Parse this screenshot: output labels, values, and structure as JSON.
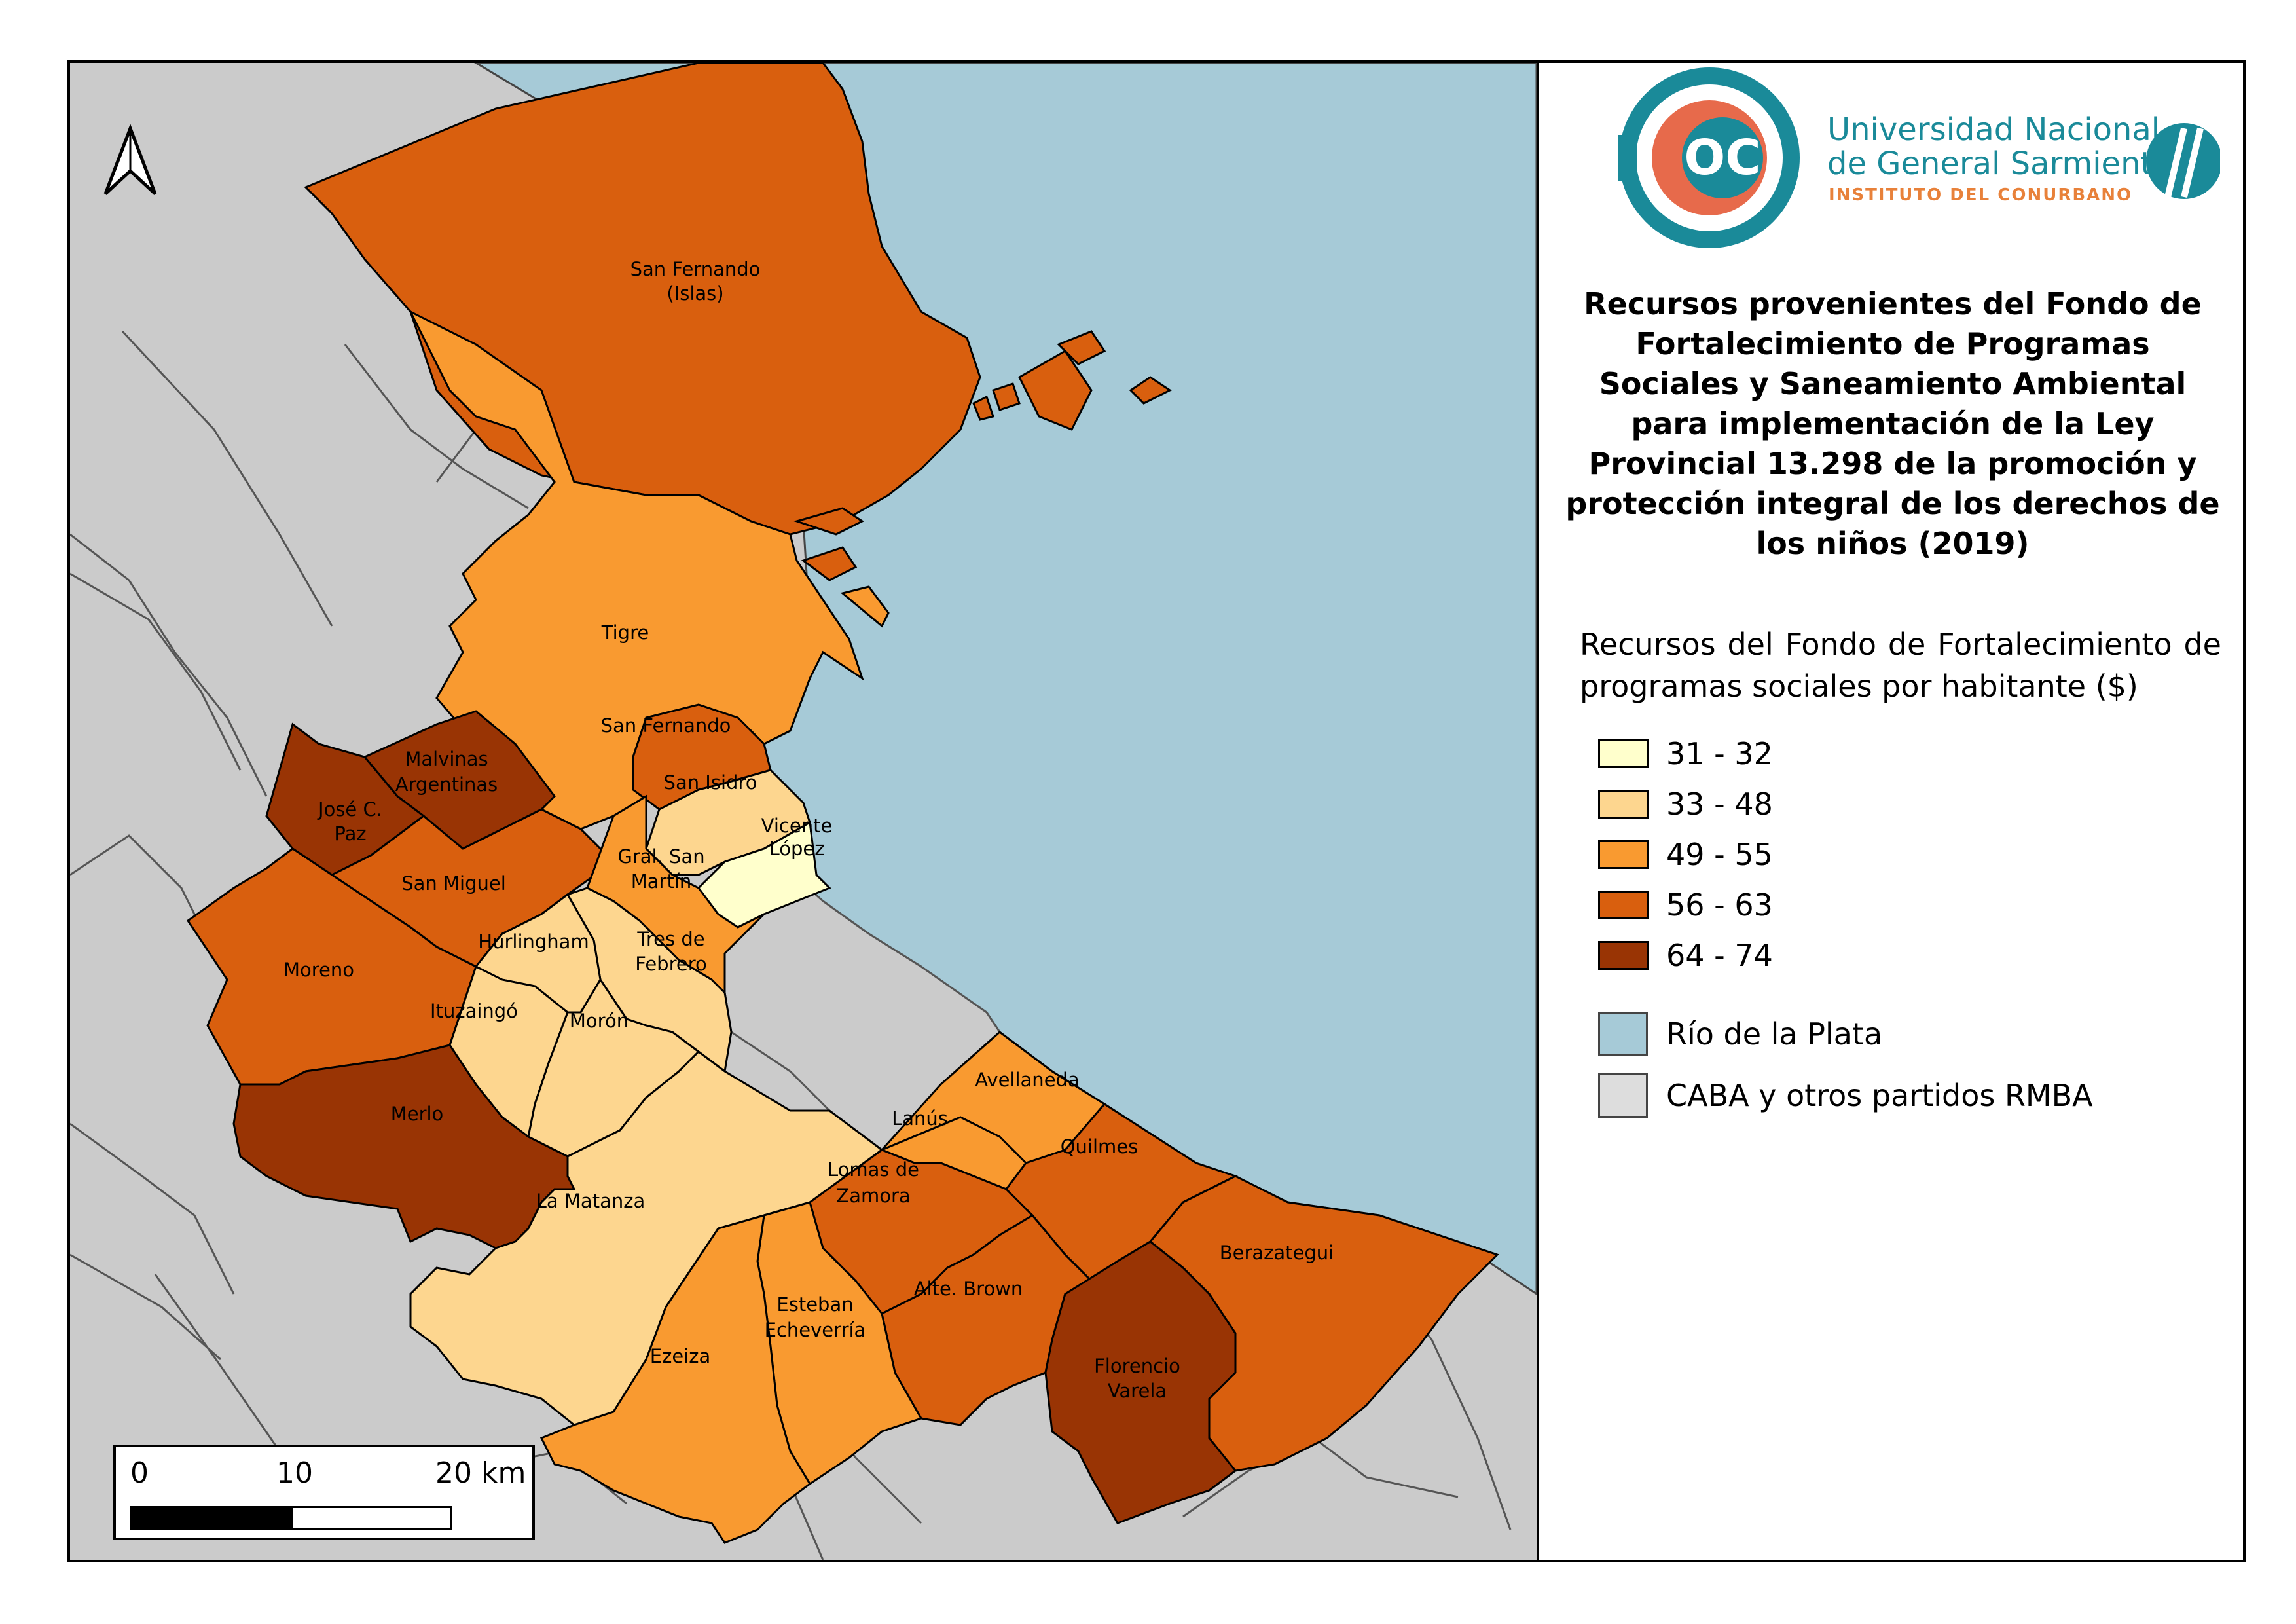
{
  "title": "Recursos provenientes del Fondo de Fortalecimiento de Programas Sociales y Saneamiento Ambiental para implementación de la Ley Provincial 13.298 de la promoción y protección integral de los derechos de los niños (2019)",
  "logo": {
    "monogram": "OC",
    "name_line1": "Universidad Nacional",
    "name_line2": "de General Sarmiento",
    "institute": "INSTITUTO DEL CONURBANO"
  },
  "legend": {
    "title": "Recursos del Fondo de Fortalecimiento de programas sociales por habitante ($)",
    "classes": [
      {
        "range": "31 - 32",
        "color": "#ffffcc"
      },
      {
        "range": "33 - 48",
        "color": "#fdd68f"
      },
      {
        "range": "49 - 55",
        "color": "#f99a30"
      },
      {
        "range": "56 - 63",
        "color": "#d95f0e"
      },
      {
        "range": "64 - 74",
        "color": "#993404"
      }
    ],
    "other": [
      {
        "label": "Río de la Plata",
        "color": "#a6cad7"
      },
      {
        "label": "CABA y otros partidos RMBA",
        "color": "#dddddd"
      }
    ]
  },
  "scale": {
    "labels": [
      "0",
      "10",
      "20 km"
    ]
  },
  "north_arrow": "north-arrow-icon",
  "districts": {
    "san_fernando_islas": {
      "name_line1": "San Fernando",
      "name_line2": "(Islas)",
      "class": "56 - 63"
    },
    "tigre": {
      "name": "Tigre",
      "class": "49 - 55"
    },
    "san_fernando": {
      "name": "San Fernando",
      "class": "56 - 63"
    },
    "san_isidro": {
      "name": "San Isidro",
      "class": "33 - 48"
    },
    "vicente_lopez": {
      "name_line1": "Vicente",
      "name_line2": "López",
      "class": "31 - 32"
    },
    "malvinas_argentinas": {
      "name_line1": "Malvinas",
      "name_line2": "Argentinas",
      "class": "64 - 74"
    },
    "jose_c_paz": {
      "name_line1": "José C.",
      "name_line2": "Paz",
      "class": "64 - 74"
    },
    "san_miguel": {
      "name": "San Miguel",
      "class": "56 - 63"
    },
    "gral_san_martin": {
      "name_line1": "Gral. San",
      "name_line2": "Martín",
      "class": "49 - 55"
    },
    "hurlingham": {
      "name": "Hurlingham",
      "class": "33 - 48"
    },
    "tres_de_febrero": {
      "name_line1": "Tres de",
      "name_line2": "Febrero",
      "class": "33 - 48"
    },
    "moreno": {
      "name": "Moreno",
      "class": "56 - 63"
    },
    "ituzaingo": {
      "name": "Ituzaingó",
      "class": "33 - 48"
    },
    "moron": {
      "name": "Morón",
      "class": "33 - 48"
    },
    "merlo": {
      "name": "Merlo",
      "class": "64 - 74"
    },
    "la_matanza": {
      "name": "La Matanza",
      "class": "33 - 48"
    },
    "avellaneda": {
      "name": "Avellaneda",
      "class": "49 - 55"
    },
    "lanus": {
      "name": "Lanús",
      "class": "49 - 55"
    },
    "lomas_de_zamora": {
      "name_line1": "Lomas de",
      "name_line2": "Zamora",
      "class": "56 - 63"
    },
    "quilmes": {
      "name": "Quilmes",
      "class": "56 - 63"
    },
    "berazategui": {
      "name": "Berazategui",
      "class": "56 - 63"
    },
    "alte_brown": {
      "name": "Alte. Brown",
      "class": "56 - 63"
    },
    "florencio_varela": {
      "name_line1": "Florencio",
      "name_line2": "Varela",
      "class": "64 - 74"
    },
    "esteban_echeverria": {
      "name_line1": "Esteban",
      "name_line2": "Echeverría",
      "class": "49 - 55"
    },
    "ezeiza": {
      "name": "Ezeiza",
      "class": "49 - 55"
    }
  }
}
